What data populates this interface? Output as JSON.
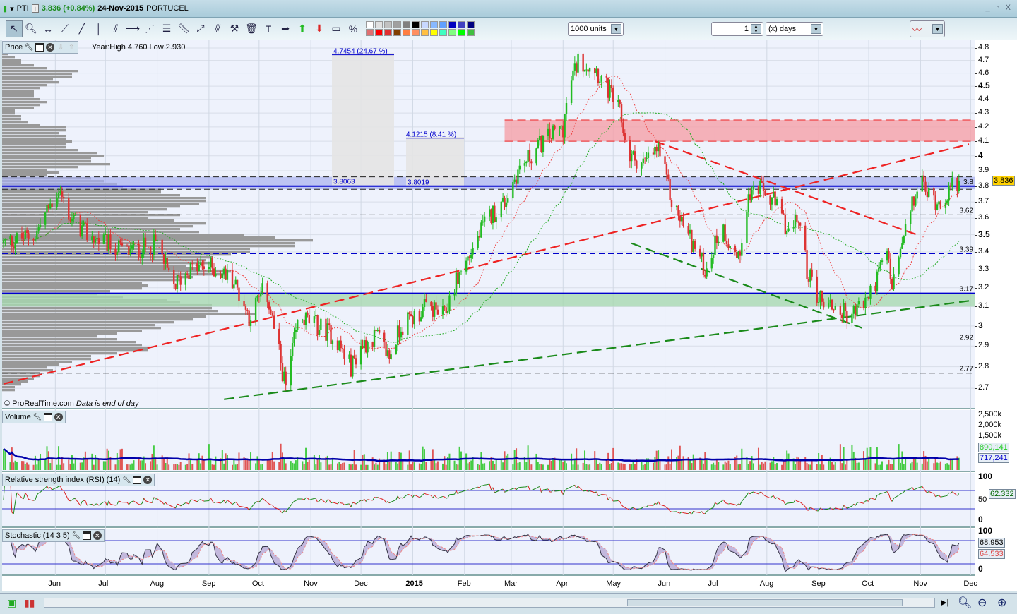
{
  "titlebar": {
    "symbol": "PTI",
    "last": "3.836 (+0.84%)",
    "date": "24-Nov-2015",
    "name": "PORTUCEL",
    "window_buttons": "_ ▫ X"
  },
  "toolbar": {
    "tools": [
      "pointer",
      "zoom",
      "horizontal-line",
      "segment",
      "line",
      "vertical-line",
      "channel",
      "half-line",
      "fan",
      "fibonacci",
      "ruler",
      "point-to-point",
      "parallel",
      "tools-hammer",
      "trash",
      "text",
      "arrow-right",
      "arrow-up",
      "arrow-down",
      "rectangle",
      "percent"
    ],
    "colors": [
      "#ffffff",
      "#e0e0e0",
      "#c0c0c0",
      "#a0a0a0",
      "#808080",
      "#000000",
      "#c8d8ff",
      "#88b8ff",
      "#60a0ff",
      "#0000c0",
      "#4040c0",
      "#000080",
      "#8000c0",
      "#ff80c0",
      "#e07070",
      "#ff0000",
      "#e03030",
      "#804000",
      "#ff8040",
      "#ff9060",
      "#ffc040",
      "#ffff00",
      "#40ffc0",
      "#80ff80",
      "#00ff00",
      "#40c040",
      "#20a020",
      "#008000"
    ],
    "units_value": "1000 units",
    "period_value": "1",
    "period_unit": "(x) days"
  },
  "price_panel": {
    "label": "Price",
    "year_range": "Year:High 4.760 Low 2.930",
    "copyright": "© ProRealTime.com",
    "eod_note": "Data is end of day",
    "annotations": [
      "4.7454 (24.67 %)",
      "4.1215 (8.41 %)",
      "3.8063",
      "3.8019"
    ],
    "level_labels": [
      "3.8",
      "3.62",
      "3.39",
      "3.17",
      "2.92",
      "2.77"
    ],
    "current_price": "3.836",
    "ticks": [
      {
        "v": 4.8,
        "t": "4.8"
      },
      {
        "v": 4.7,
        "t": "4.7"
      },
      {
        "v": 4.6,
        "t": "4.6"
      },
      {
        "v": 4.5,
        "t": "4.5",
        "b": true
      },
      {
        "v": 4.4,
        "t": "4.4"
      },
      {
        "v": 4.3,
        "t": "4.3"
      },
      {
        "v": 4.2,
        "t": "4.2"
      },
      {
        "v": 4.1,
        "t": "4.1"
      },
      {
        "v": 4.0,
        "t": "4",
        "b": true
      },
      {
        "v": 3.9,
        "t": "3.9"
      },
      {
        "v": 3.8,
        "t": "3.8"
      },
      {
        "v": 3.7,
        "t": "3.7"
      },
      {
        "v": 3.6,
        "t": "3.6"
      },
      {
        "v": 3.5,
        "t": "3.5",
        "b": true
      },
      {
        "v": 3.4,
        "t": "3.4"
      },
      {
        "v": 3.3,
        "t": "3.3"
      },
      {
        "v": 3.2,
        "t": "3.2"
      },
      {
        "v": 3.1,
        "t": "3.1"
      },
      {
        "v": 3.0,
        "t": "3",
        "b": true
      },
      {
        "v": 2.9,
        "t": "2.9"
      },
      {
        "v": 2.8,
        "t": "2.8"
      },
      {
        "v": 2.7,
        "t": "2.7"
      }
    ]
  },
  "volume_panel": {
    "label": "Volume",
    "ticks": [
      "2,500k",
      "2,000k",
      "1,500k"
    ],
    "current": "890,141",
    "average": "717,241"
  },
  "rsi_panel": {
    "label": "Relative strength index (RSI) (14)",
    "ticks": [
      "100",
      "50",
      "0"
    ],
    "current": "62.332"
  },
  "stoch_panel": {
    "label": "Stochastic (14 3 5)",
    "ticks": [
      "100",
      "0"
    ],
    "k": "68.953",
    "d": "64.533"
  },
  "x_axis": [
    "Jun",
    "Jul",
    "Aug",
    "Sep",
    "Oct",
    "Nov",
    "Dec",
    "2015",
    "Feb",
    "Mar",
    "Apr",
    "May",
    "Jun",
    "Jul",
    "Aug",
    "Sep",
    "Oct",
    "Nov",
    "Dec"
  ],
  "colors": {
    "up": "#22bb22",
    "down": "#dd3333",
    "zone_red": "#f5a0a8",
    "zone_blue": "#a8b0f0",
    "zone_green": "#a8d8b0",
    "level_blue": "#0000cc"
  },
  "chart_data": {
    "type": "candlestick",
    "scale": "log",
    "ylim": [
      2.65,
      4.85
    ],
    "x_range": [
      "2014-05-01",
      "2015-11-30"
    ],
    "close_path": [
      [
        "2014-05-01",
        3.45
      ],
      [
        "2014-05-20",
        3.5
      ],
      [
        "2014-06-03",
        3.78
      ],
      [
        "2014-06-10",
        3.6
      ],
      [
        "2014-06-20",
        3.5
      ],
      [
        "2014-07-01",
        3.45
      ],
      [
        "2014-07-15",
        3.4
      ],
      [
        "2014-08-01",
        3.45
      ],
      [
        "2014-08-10",
        3.2
      ],
      [
        "2014-08-20",
        3.3
      ],
      [
        "2014-09-01",
        3.32
      ],
      [
        "2014-09-15",
        3.25
      ],
      [
        "2014-09-25",
        3.05
      ],
      [
        "2014-10-05",
        3.2
      ],
      [
        "2014-10-12",
        2.9
      ],
      [
        "2014-10-17",
        2.7
      ],
      [
        "2014-10-25",
        3.05
      ],
      [
        "2014-11-05",
        3.0
      ],
      [
        "2014-11-15",
        2.95
      ],
      [
        "2014-11-25",
        2.8
      ],
      [
        "2014-12-01",
        2.9
      ],
      [
        "2014-12-10",
        2.95
      ],
      [
        "2014-12-18",
        2.85
      ],
      [
        "2014-12-25",
        3.0
      ],
      [
        "2015-01-10",
        3.1
      ],
      [
        "2015-01-20",
        3.05
      ],
      [
        "2015-01-25",
        3.2
      ],
      [
        "2015-02-05",
        3.4
      ],
      [
        "2015-02-15",
        3.6
      ],
      [
        "2015-02-25",
        3.7
      ],
      [
        "2015-03-05",
        3.9
      ],
      [
        "2015-03-20",
        4.1
      ],
      [
        "2015-04-01",
        4.2
      ],
      [
        "2015-04-05",
        4.5
      ],
      [
        "2015-04-10",
        4.7
      ],
      [
        "2015-04-20",
        4.65
      ],
      [
        "2015-05-01",
        4.4
      ],
      [
        "2015-05-05",
        4.3
      ],
      [
        "2015-05-10",
        4.0
      ],
      [
        "2015-05-20",
        3.95
      ],
      [
        "2015-05-28",
        4.05
      ],
      [
        "2015-06-05",
        3.7
      ],
      [
        "2015-06-15",
        3.5
      ],
      [
        "2015-06-25",
        3.3
      ],
      [
        "2015-07-05",
        3.55
      ],
      [
        "2015-07-15",
        3.35
      ],
      [
        "2015-07-20",
        3.7
      ],
      [
        "2015-07-25",
        3.8
      ],
      [
        "2015-08-05",
        3.7
      ],
      [
        "2015-08-15",
        3.5
      ],
      [
        "2015-08-20",
        3.6
      ],
      [
        "2015-08-25",
        3.3
      ],
      [
        "2015-09-01",
        3.15
      ],
      [
        "2015-09-10",
        3.1
      ],
      [
        "2015-09-20",
        3.05
      ],
      [
        "2015-10-01",
        3.15
      ],
      [
        "2015-10-08",
        3.3
      ],
      [
        "2015-10-12",
        3.4
      ],
      [
        "2015-10-15",
        3.2
      ],
      [
        "2015-10-25",
        3.6
      ],
      [
        "2015-11-01",
        3.85
      ],
      [
        "2015-11-05",
        3.75
      ],
      [
        "2015-11-12",
        3.7
      ],
      [
        "2015-11-24",
        3.836
      ]
    ],
    "zones": [
      {
        "from": 4.1,
        "to": 4.25,
        "start": "2015-02-25",
        "color": "red"
      },
      {
        "from": 3.78,
        "to": 3.86,
        "color": "blue"
      },
      {
        "from": 3.1,
        "to": 3.17,
        "color": "green"
      }
    ],
    "levels_dashed": [
      3.86,
      3.78,
      3.62,
      3.39,
      2.92,
      2.77
    ],
    "levels_solid": [
      3.8,
      3.17
    ],
    "trendlines": [
      {
        "color": "red",
        "from": [
          "2014-05-01",
          2.72
        ],
        "to": [
          "2015-11-30",
          4.08
        ]
      },
      {
        "color": "red",
        "from": [
          "2015-05-26",
          4.1
        ],
        "to": [
          "2015-10-30",
          3.5
        ]
      },
      {
        "color": "green",
        "from": [
          "2014-09-10",
          2.65
        ],
        "to": [
          "2015-11-30",
          3.13
        ]
      },
      {
        "color": "green",
        "from": [
          "2015-05-12",
          3.45
        ],
        "to": [
          "2015-09-27",
          2.99
        ]
      }
    ]
  }
}
